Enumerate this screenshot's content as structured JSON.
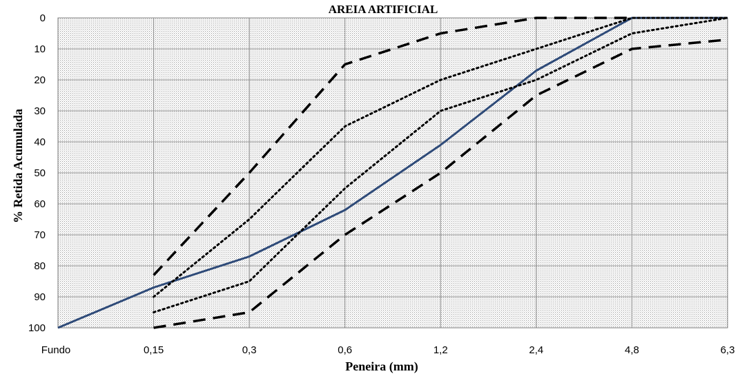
{
  "chart_data": {
    "type": "line",
    "title": "AREIA ARTIFICIAL",
    "xlabel": "Peneira (mm)",
    "ylabel": "% Retida Acumulada",
    "categories": [
      "Fundo",
      "0,15",
      "0,3",
      "0,6",
      "1,2",
      "2,4",
      "4,8",
      "6,3"
    ],
    "yticks": [
      "0",
      "10",
      "20",
      "30",
      "40",
      "50",
      "60",
      "70",
      "80",
      "90",
      "100"
    ],
    "ylim": [
      0,
      100
    ],
    "y_inverted": true,
    "grid": true,
    "series": [
      {
        "style": "solid",
        "color": "#2e4a78",
        "points": [
          [
            0,
            100
          ],
          [
            1,
            87
          ],
          [
            2,
            77
          ],
          [
            3,
            62
          ],
          [
            4,
            41
          ],
          [
            5,
            17
          ],
          [
            6,
            0
          ],
          [
            7,
            0
          ]
        ]
      },
      {
        "style": "dashed",
        "color": "#000000",
        "points": [
          [
            1,
            83
          ],
          [
            2,
            50
          ],
          [
            3,
            15
          ],
          [
            4,
            5
          ],
          [
            5,
            0
          ],
          [
            6,
            0
          ]
        ]
      },
      {
        "style": "dashed",
        "color": "#000000",
        "points": [
          [
            1,
            100
          ],
          [
            2,
            95
          ],
          [
            3,
            70
          ],
          [
            4,
            50
          ],
          [
            5,
            25
          ],
          [
            6,
            10
          ],
          [
            7,
            7
          ]
        ]
      },
      {
        "style": "dotted",
        "color": "#000000",
        "points": [
          [
            1,
            90
          ],
          [
            2,
            65
          ],
          [
            3,
            35
          ],
          [
            4,
            20
          ],
          [
            5,
            10
          ],
          [
            6,
            0
          ],
          [
            7,
            0
          ]
        ]
      },
      {
        "style": "dotted",
        "color": "#000000",
        "points": [
          [
            1,
            95
          ],
          [
            2,
            85
          ],
          [
            3,
            55
          ],
          [
            4,
            30
          ],
          [
            5,
            20
          ],
          [
            6,
            5
          ],
          [
            7,
            0
          ]
        ]
      }
    ]
  }
}
